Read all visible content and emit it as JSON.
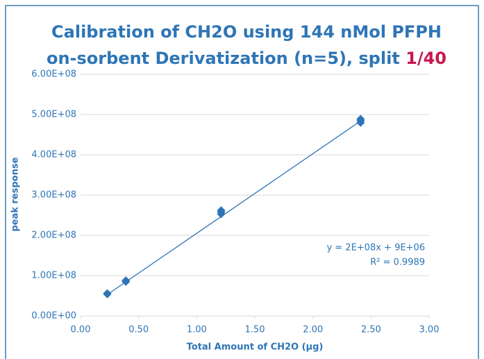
{
  "chart_data": {
    "type": "scatter",
    "title_line1": "Calibration of CH2O using 144 nMol PFPH",
    "title_line2": "on-sorbent Derivatization (n=5), split ",
    "title_highlight": "1/40",
    "x_label": "Total Amount of CH2O (µg)",
    "y_label": "peak response",
    "x": [
      0.23,
      0.23,
      0.39,
      0.39,
      1.21,
      1.21,
      1.21,
      2.41,
      2.41,
      2.41
    ],
    "values": [
      54000000,
      56000000,
      85000000,
      88000000,
      253000000,
      258000000,
      262000000,
      480000000,
      485000000,
      489000000
    ],
    "color": "#2e75b6",
    "trendline": {
      "x": [
        0.23,
        2.41
      ],
      "y": [
        53000000,
        484000000
      ],
      "color": "#2e75b6"
    },
    "equation": "y = 2E+08x + 9E+06",
    "r_squared": "R² = 0.9989",
    "xlim": [
      0,
      3
    ],
    "ylim": [
      0,
      600000000
    ],
    "xticks": [
      {
        "value": 0,
        "label": "0.00"
      },
      {
        "value": 0.5,
        "label": "0.50"
      },
      {
        "value": 1,
        "label": "1.00"
      },
      {
        "value": 1.5,
        "label": "1.50"
      },
      {
        "value": 2,
        "label": "2.00"
      },
      {
        "value": 2.5,
        "label": "2.50"
      },
      {
        "value": 3,
        "label": "3.00"
      }
    ],
    "yticks": [
      {
        "value": 0,
        "label": "0.00E+00"
      },
      {
        "value": 100000000,
        "label": "1.00E+08"
      },
      {
        "value": 200000000,
        "label": "2.00E+08"
      },
      {
        "value": 300000000,
        "label": "3.00E+08"
      },
      {
        "value": 400000000,
        "label": "4.00E+08"
      },
      {
        "value": 500000000,
        "label": "5.00E+08"
      },
      {
        "value": 600000000,
        "label": "6.00E+08"
      }
    ],
    "grid": true
  }
}
